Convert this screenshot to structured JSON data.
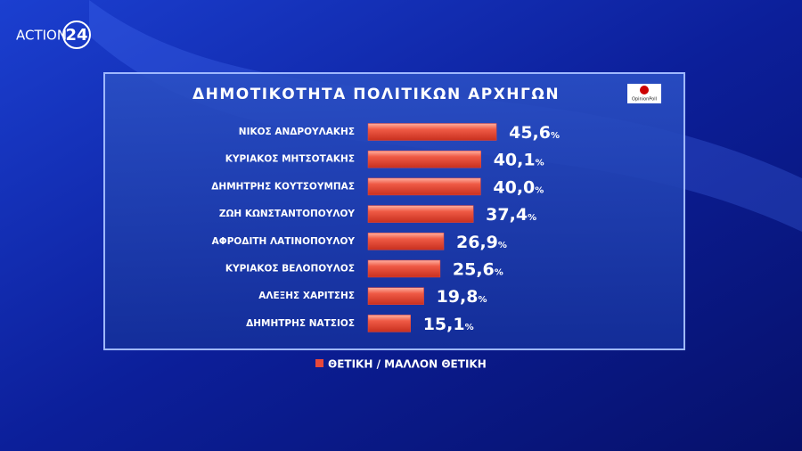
{
  "branding": {
    "channel": "ACTION",
    "channel_number": "24",
    "pollster": "OpinionPoll"
  },
  "chart_data": {
    "type": "hbar",
    "title": "ΔΗΜΟΤΙΚΟΤΗΤΑ ΠΟΛΙΤΙΚΩΝ ΑΡΧΗΓΩΝ",
    "categories": [
      "ΝΙΚΟΣ ΑΝΔΡΟΥΛΑΚΗΣ",
      "ΚΥΡΙΑΚΟΣ ΜΗΤΣΟΤΑΚΗΣ",
      "ΔΗΜΗΤΡΗΣ ΚΟΥΤΣΟΥΜΠΑΣ",
      "ΖΩΗ ΚΩΝΣΤΑΝΤΟΠΟΥΛΟΥ",
      "ΑΦΡΟΔΙΤΗ ΛΑΤΙΝΟΠΟΥΛΟΥ",
      "ΚΥΡΙΑΚΟΣ ΒΕΛΟΠΟΥΛΟΣ",
      "ΑΛΕΞΗΣ ΧΑΡΙΤΣΗΣ",
      "ΔΗΜΗΤΡΗΣ ΝΑΤΣΙΟΣ"
    ],
    "series": [
      {
        "name": "ΘΕΤΙΚΗ / ΜΑΛΛΟΝ ΘΕΤΙΚΗ",
        "color": "#e8483a",
        "values": [
          45.6,
          40.1,
          40.0,
          37.4,
          26.9,
          25.6,
          19.8,
          15.1
        ],
        "value_labels": [
          "45,6%",
          "40,1%",
          "40,0%",
          "37,4%",
          "26,9%",
          "25,6%",
          "19,8%",
          "15,1%"
        ]
      }
    ],
    "legend": "bottom"
  }
}
